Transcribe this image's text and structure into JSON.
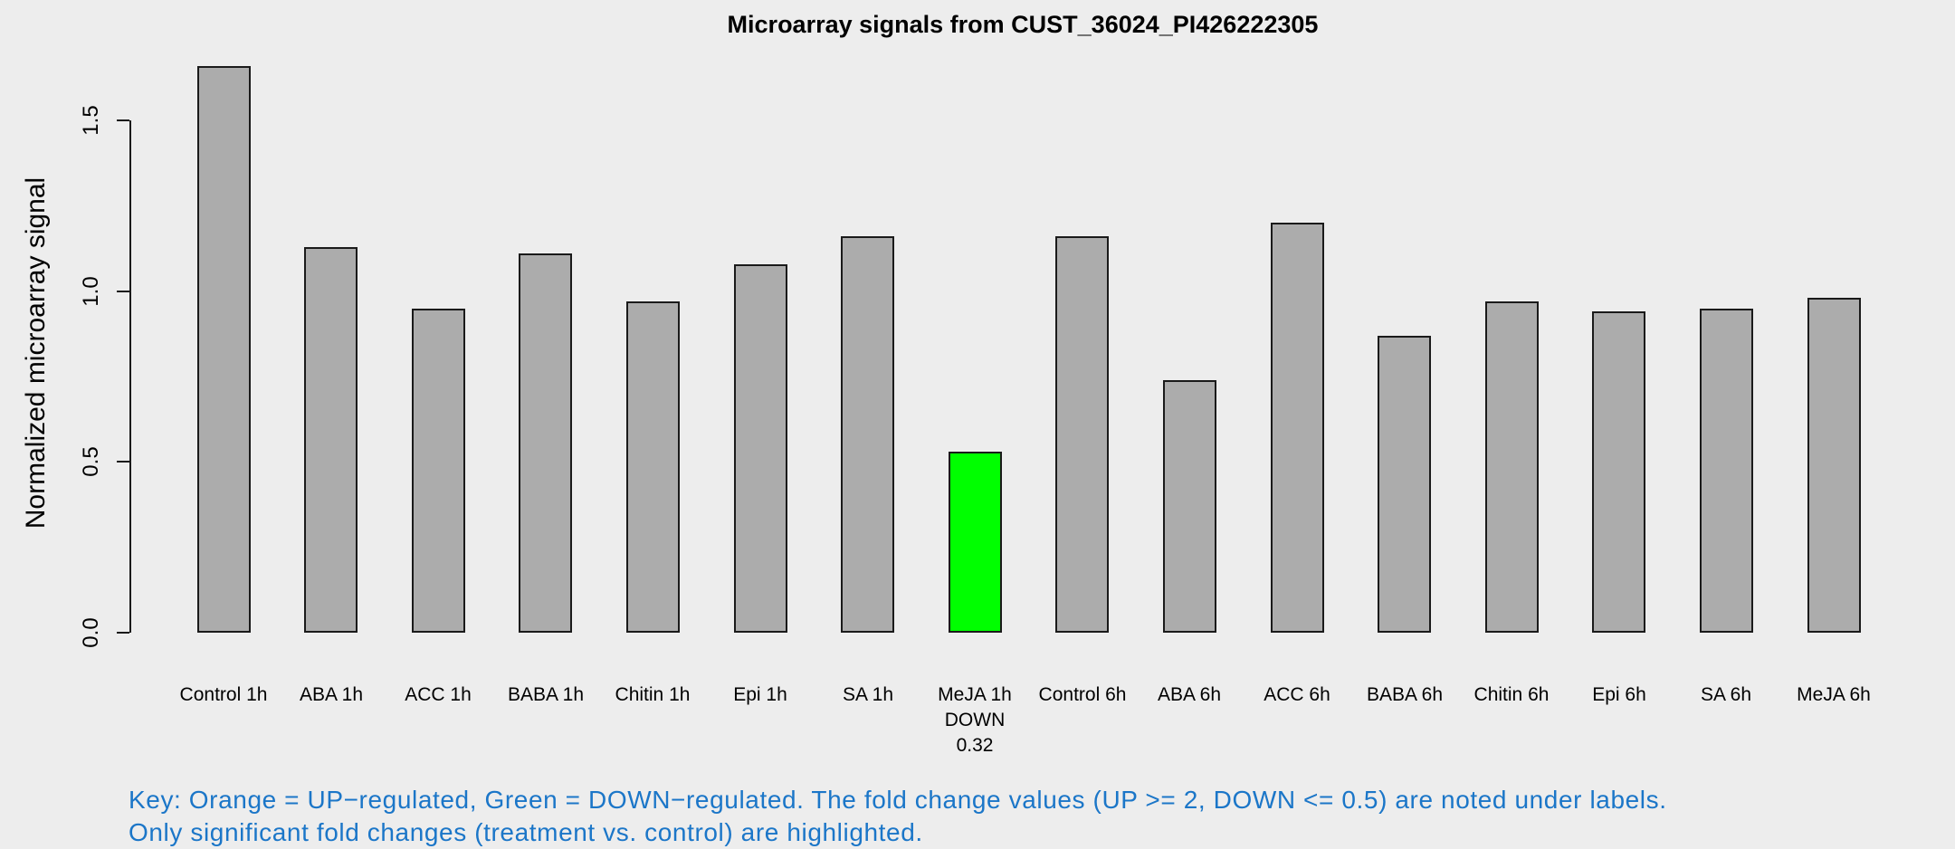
{
  "title": "Microarray signals from CUST_36024_PI426222305",
  "y_axis": {
    "label": "Normalized microarray signal",
    "tick_labels": [
      "0.0",
      "0.5",
      "1.0",
      "1.5"
    ]
  },
  "footnote": {
    "line1": "Key: Orange = UP−regulated, Green = DOWN−regulated. The fold change values (UP >= 2, DOWN <= 0.5) are noted under labels.",
    "line2": "Only significant fold changes (treatment vs. control) are highlighted.",
    "color": "#1B76C8"
  },
  "colors": {
    "background": "#EDEDED",
    "bar_fill_default": "#ACACAC",
    "bar_fill_down": "#00FF00",
    "bar_border": "#1a1a1a",
    "axis": "#1a1a1a",
    "text": "#000000"
  },
  "chart_data": {
    "type": "bar",
    "title": "Microarray signals from CUST_36024_PI426222305",
    "xlabel": "",
    "ylabel": "Normalized microarray signal",
    "ylim": [
      0,
      1.66
    ],
    "y_ticks": [
      0.0,
      0.5,
      1.0,
      1.5
    ],
    "grid": false,
    "legend_position": "none",
    "categories": [
      "Control 1h",
      "ABA 1h",
      "ACC 1h",
      "BABA 1h",
      "Chitin 1h",
      "Epi 1h",
      "SA 1h",
      "MeJA 1h",
      "Control 6h",
      "ABA 6h",
      "ACC 6h",
      "BABA 6h",
      "Chitin 6h",
      "Epi 6h",
      "SA 6h",
      "MeJA 6h"
    ],
    "values": [
      1.66,
      1.13,
      0.95,
      1.11,
      0.97,
      1.08,
      1.16,
      0.53,
      1.16,
      0.74,
      1.2,
      0.87,
      0.97,
      0.94,
      0.95,
      0.98
    ],
    "bar_colors": [
      "#ACACAC",
      "#ACACAC",
      "#ACACAC",
      "#ACACAC",
      "#ACACAC",
      "#ACACAC",
      "#ACACAC",
      "#00FF00",
      "#ACACAC",
      "#ACACAC",
      "#ACACAC",
      "#ACACAC",
      "#ACACAC",
      "#ACACAC",
      "#ACACAC",
      "#ACACAC"
    ],
    "fold_change_notes": [
      {
        "index": 7,
        "category": "MeJA 1h",
        "lines": [
          "DOWN",
          "0.32"
        ]
      }
    ]
  }
}
